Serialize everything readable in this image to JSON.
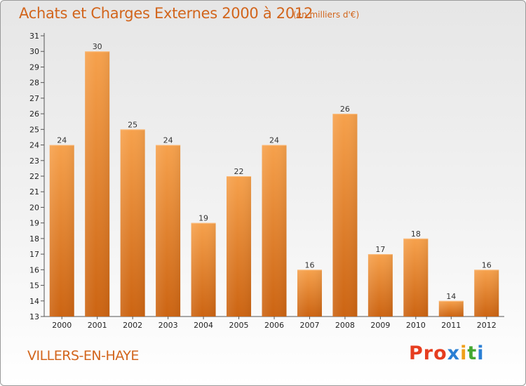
{
  "title": "Achats et Charges Externes 2000 à 2012",
  "unit": "(en milliers d'€)",
  "commune": "VILLERS-EN-HAYE",
  "logo": {
    "p1": "Pro",
    "p2": "x",
    "p3": "i",
    "p4": "t",
    "p5": "i"
  },
  "colors": {
    "bar_top": "#f6a14c",
    "bar_bottom": "#cc6412",
    "text_accent": "#d2651c"
  },
  "chart_data": {
    "type": "bar",
    "categories": [
      "2000",
      "2001",
      "2002",
      "2003",
      "2004",
      "2005",
      "2006",
      "2007",
      "2008",
      "2009",
      "2010",
      "2011",
      "2012"
    ],
    "values": [
      24,
      30,
      25,
      24,
      19,
      22,
      24,
      16,
      26,
      17,
      18,
      14,
      16
    ],
    "ylim": [
      13,
      31
    ],
    "yticks": [
      13,
      14,
      15,
      16,
      17,
      18,
      19,
      20,
      21,
      22,
      23,
      24,
      25,
      26,
      27,
      28,
      29,
      30,
      31
    ],
    "grid": false
  }
}
